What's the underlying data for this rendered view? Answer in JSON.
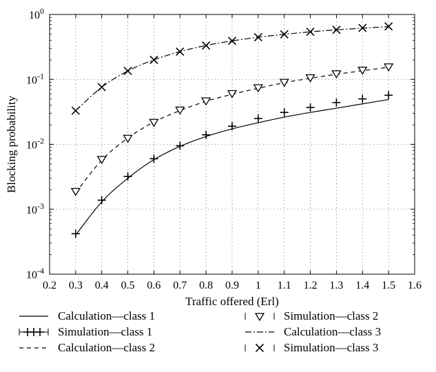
{
  "chart_data": {
    "type": "line",
    "title": "",
    "xlabel": "Traffic offered (Erl)",
    "ylabel": "Blocking probability",
    "xlim": [
      0.2,
      1.6
    ],
    "ylim": [
      0.0001,
      1
    ],
    "yscale": "log",
    "grid": true,
    "legend_position": "bottom",
    "x_ticks": [
      0.2,
      0.3,
      0.4,
      0.5,
      0.6,
      0.7,
      0.8,
      0.9,
      1,
      1.1,
      1.2,
      1.3,
      1.4,
      1.5,
      1.6
    ],
    "x_tick_labels": [
      "0.2",
      "0.3",
      "0.4",
      "0.5",
      "0.6",
      "0.7",
      "0.8",
      "0.9",
      "1",
      "1.1",
      "1.2",
      "1.3",
      "1.4",
      "1.5",
      "1.6"
    ],
    "y_ticks": [
      {
        "value": 1,
        "base": "10",
        "exp": "0"
      },
      {
        "value": 0.1,
        "base": "10",
        "exp": "-1"
      },
      {
        "value": 0.01,
        "base": "10",
        "exp": "-2"
      },
      {
        "value": 0.001,
        "base": "10",
        "exp": "-3"
      },
      {
        "value": 0.0001,
        "base": "10",
        "exp": "-4"
      }
    ],
    "series": [
      {
        "name": "Calculation—class 1",
        "kind": "line",
        "dash": "",
        "marker": "none",
        "x": [
          0.3,
          0.4,
          0.5,
          0.6,
          0.7,
          0.8,
          0.9,
          1.0,
          1.1,
          1.2,
          1.3,
          1.4,
          1.5
        ],
        "y": [
          0.0004,
          0.0013,
          0.003,
          0.0058,
          0.0093,
          0.0132,
          0.0173,
          0.0215,
          0.0262,
          0.031,
          0.036,
          0.042,
          0.049
        ]
      },
      {
        "name": "Simulation—class 1",
        "kind": "marker",
        "marker": "plus",
        "x": [
          0.3,
          0.4,
          0.5,
          0.6,
          0.7,
          0.8,
          0.9,
          1.0,
          1.1,
          1.2,
          1.3,
          1.4,
          1.5
        ],
        "y": [
          0.00042,
          0.00138,
          0.0032,
          0.006,
          0.0095,
          0.014,
          0.019,
          0.025,
          0.031,
          0.037,
          0.044,
          0.05,
          0.057
        ]
      },
      {
        "name": "Calculation—class 2",
        "kind": "line",
        "dash": "6,5",
        "marker": "none",
        "x": [
          0.3,
          0.4,
          0.5,
          0.6,
          0.7,
          0.8,
          0.9,
          1.0,
          1.1,
          1.2,
          1.3,
          1.4,
          1.5
        ],
        "y": [
          0.0018,
          0.0057,
          0.0125,
          0.022,
          0.033,
          0.046,
          0.059,
          0.073,
          0.089,
          0.104,
          0.12,
          0.136,
          0.154
        ]
      },
      {
        "name": "Simulation—class 2",
        "kind": "marker",
        "marker": "triangle",
        "x": [
          0.3,
          0.4,
          0.5,
          0.6,
          0.7,
          0.8,
          0.9,
          1.0,
          1.1,
          1.2,
          1.3,
          1.4,
          1.5
        ],
        "y": [
          0.0019,
          0.0059,
          0.0125,
          0.022,
          0.034,
          0.047,
          0.061,
          0.075,
          0.091,
          0.107,
          0.123,
          0.14,
          0.157
        ]
      },
      {
        "name": "Calculation—class 3",
        "kind": "line",
        "dash": "9,3,2,3",
        "marker": "none",
        "x": [
          0.3,
          0.4,
          0.5,
          0.6,
          0.7,
          0.8,
          0.9,
          1.0,
          1.1,
          1.2,
          1.3,
          1.4,
          1.5
        ],
        "y": [
          0.033,
          0.076,
          0.135,
          0.2,
          0.268,
          0.333,
          0.392,
          0.446,
          0.495,
          0.54,
          0.58,
          0.615,
          0.65
        ]
      },
      {
        "name": "Simulation—class 3",
        "kind": "marker",
        "marker": "cross",
        "x": [
          0.3,
          0.4,
          0.5,
          0.6,
          0.7,
          0.8,
          0.9,
          1.0,
          1.1,
          1.2,
          1.3,
          1.4,
          1.5
        ],
        "y": [
          0.033,
          0.076,
          0.135,
          0.2,
          0.268,
          0.333,
          0.392,
          0.446,
          0.495,
          0.54,
          0.58,
          0.62,
          0.655
        ]
      }
    ]
  }
}
